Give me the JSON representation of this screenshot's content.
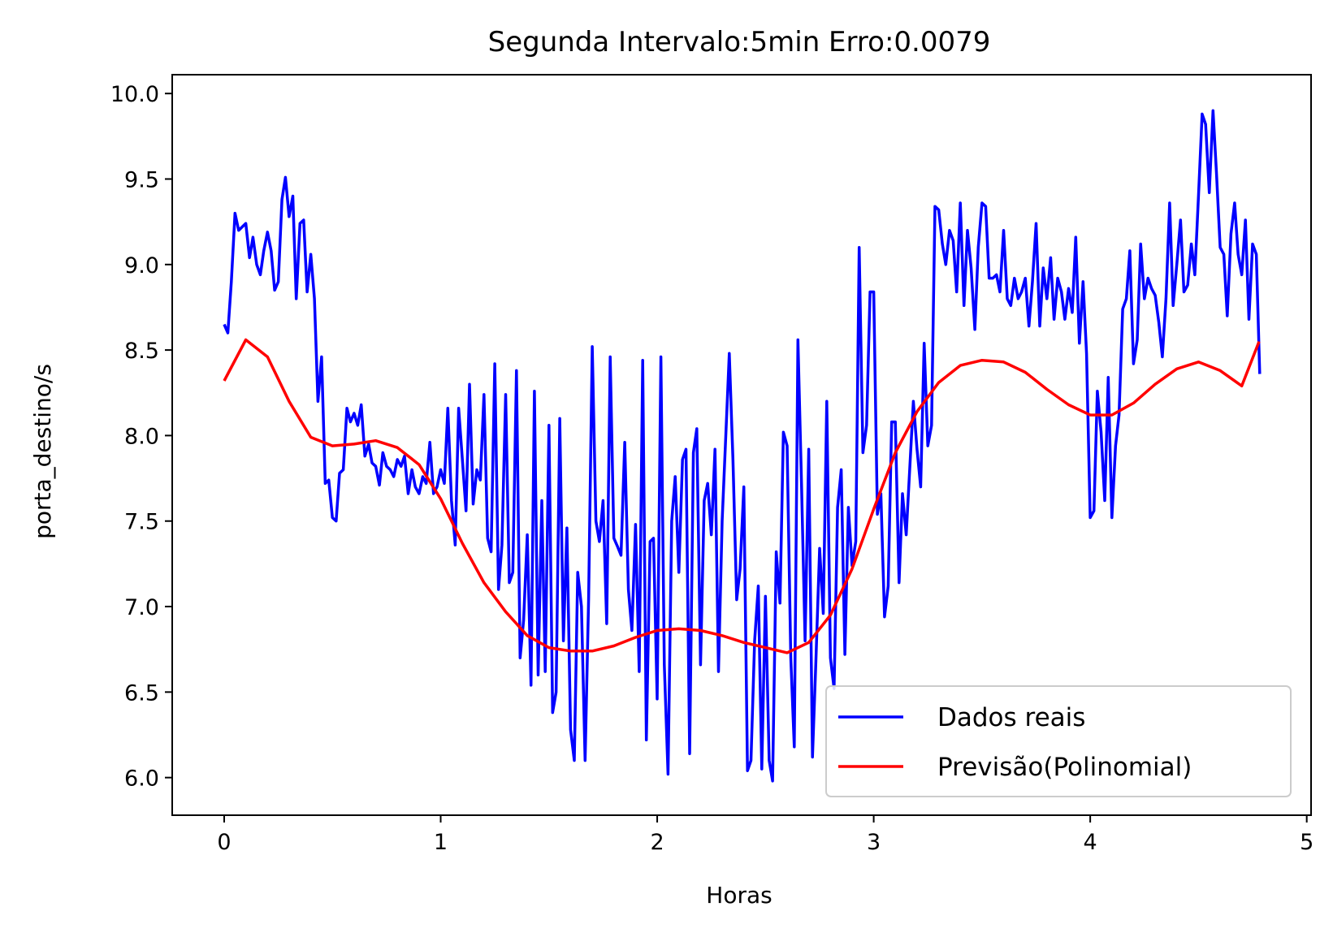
{
  "chart_data": {
    "type": "line",
    "title": "Segunda Intervalo:5min Erro:0.0079",
    "xlabel": "Horas",
    "ylabel": "porta_destino/s",
    "xlim": [
      -0.24,
      5.02
    ],
    "ylim": [
      5.78,
      10.11
    ],
    "xticks": [
      0,
      1,
      2,
      3,
      4,
      5
    ],
    "xtick_labels": [
      "0",
      "1",
      "2",
      "3",
      "4",
      "5"
    ],
    "yticks": [
      6.0,
      6.5,
      7.0,
      7.5,
      8.0,
      8.5,
      9.0,
      9.5,
      10.0
    ],
    "ytick_labels": [
      "6.0",
      "6.5",
      "7.0",
      "7.5",
      "8.0",
      "8.5",
      "9.0",
      "9.5",
      "10.0"
    ],
    "grid": false,
    "legend_position": "lower right",
    "series": [
      {
        "name": "Dados reais",
        "color": "#0000ff",
        "x": [
          0.0,
          0.017,
          0.033,
          0.05,
          0.067,
          0.083,
          0.1,
          0.117,
          0.133,
          0.15,
          0.167,
          0.183,
          0.2,
          0.217,
          0.233,
          0.25,
          0.267,
          0.283,
          0.3,
          0.317,
          0.333,
          0.35,
          0.367,
          0.383,
          0.4,
          0.417,
          0.433,
          0.45,
          0.467,
          0.483,
          0.5,
          0.517,
          0.533,
          0.55,
          0.567,
          0.583,
          0.6,
          0.617,
          0.633,
          0.65,
          0.667,
          0.683,
          0.7,
          0.717,
          0.733,
          0.75,
          0.767,
          0.783,
          0.8,
          0.817,
          0.833,
          0.85,
          0.867,
          0.883,
          0.9,
          0.917,
          0.933,
          0.95,
          0.967,
          0.983,
          1.0,
          1.017,
          1.033,
          1.05,
          1.067,
          1.083,
          1.1,
          1.117,
          1.133,
          1.15,
          1.167,
          1.183,
          1.2,
          1.217,
          1.233,
          1.25,
          1.267,
          1.283,
          1.3,
          1.317,
          1.333,
          1.35,
          1.367,
          1.383,
          1.4,
          1.417,
          1.433,
          1.45,
          1.467,
          1.483,
          1.5,
          1.517,
          1.533,
          1.55,
          1.567,
          1.583,
          1.6,
          1.617,
          1.633,
          1.65,
          1.667,
          1.683,
          1.7,
          1.717,
          1.733,
          1.75,
          1.767,
          1.783,
          1.8,
          1.817,
          1.833,
          1.85,
          1.867,
          1.883,
          1.9,
          1.917,
          1.933,
          1.95,
          1.967,
          1.983,
          2.0,
          2.017,
          2.033,
          2.05,
          2.067,
          2.083,
          2.1,
          2.117,
          2.133,
          2.15,
          2.167,
          2.183,
          2.2,
          2.217,
          2.233,
          2.25,
          2.267,
          2.283,
          2.3,
          2.317,
          2.333,
          2.35,
          2.367,
          2.383,
          2.4,
          2.417,
          2.433,
          2.45,
          2.467,
          2.483,
          2.5,
          2.517,
          2.533,
          2.55,
          2.567,
          2.583,
          2.6,
          2.617,
          2.633,
          2.65,
          2.667,
          2.683,
          2.7,
          2.717,
          2.733,
          2.75,
          2.767,
          2.783,
          2.8,
          2.817,
          2.833,
          2.85,
          2.867,
          2.883,
          2.9,
          2.917,
          2.933,
          2.95,
          2.967,
          2.983,
          3.0,
          3.017,
          3.033,
          3.05,
          3.067,
          3.083,
          3.1,
          3.117,
          3.133,
          3.15,
          3.167,
          3.183,
          3.2,
          3.217,
          3.233,
          3.25,
          3.267,
          3.283,
          3.3,
          3.317,
          3.333,
          3.35,
          3.367,
          3.383,
          3.4,
          3.417,
          3.433,
          3.45,
          3.467,
          3.483,
          3.5,
          3.517,
          3.533,
          3.55,
          3.567,
          3.583,
          3.6,
          3.617,
          3.633,
          3.65,
          3.667,
          3.683,
          3.7,
          3.717,
          3.733,
          3.75,
          3.767,
          3.783,
          3.8,
          3.817,
          3.833,
          3.85,
          3.867,
          3.883,
          3.9,
          3.917,
          3.933,
          3.95,
          3.967,
          3.983,
          4.0,
          4.017,
          4.033,
          4.05,
          4.067,
          4.083,
          4.1,
          4.117,
          4.133,
          4.15,
          4.167,
          4.183,
          4.2,
          4.217,
          4.233,
          4.25,
          4.267,
          4.283,
          4.3,
          4.317,
          4.333,
          4.35,
          4.367,
          4.383,
          4.4,
          4.417,
          4.433,
          4.45,
          4.467,
          4.483,
          4.5,
          4.517,
          4.533,
          4.55,
          4.567,
          4.583,
          4.6,
          4.617,
          4.633,
          4.65,
          4.667,
          4.683,
          4.7,
          4.717,
          4.733,
          4.75,
          4.767,
          4.783
        ],
        "values": [
          8.65,
          8.6,
          8.9,
          9.3,
          9.2,
          9.22,
          9.24,
          9.04,
          9.16,
          9.0,
          8.94,
          9.08,
          9.19,
          9.08,
          8.85,
          8.9,
          9.38,
          9.51,
          9.28,
          9.4,
          8.8,
          9.24,
          9.26,
          8.84,
          9.06,
          8.8,
          8.2,
          8.46,
          7.72,
          7.74,
          7.52,
          7.5,
          7.78,
          7.8,
          8.16,
          8.08,
          8.13,
          8.06,
          8.18,
          7.88,
          7.95,
          7.84,
          7.82,
          7.71,
          7.9,
          7.82,
          7.8,
          7.76,
          7.86,
          7.82,
          7.88,
          7.66,
          7.8,
          7.7,
          7.66,
          7.76,
          7.72,
          7.96,
          7.66,
          7.7,
          7.8,
          7.72,
          8.16,
          7.62,
          7.36,
          8.16,
          7.86,
          7.56,
          8.3,
          7.6,
          7.8,
          7.74,
          8.24,
          7.4,
          7.32,
          8.42,
          7.1,
          7.36,
          8.24,
          7.14,
          7.2,
          8.38,
          6.7,
          6.92,
          7.42,
          6.54,
          8.26,
          6.6,
          7.62,
          6.62,
          8.06,
          6.38,
          6.5,
          8.1,
          6.8,
          7.46,
          6.28,
          6.1,
          7.2,
          7.0,
          6.1,
          7.04,
          8.52,
          7.5,
          7.38,
          7.62,
          6.9,
          8.46,
          7.4,
          7.35,
          7.3,
          7.96,
          7.1,
          6.86,
          7.48,
          6.62,
          8.44,
          6.22,
          7.38,
          7.4,
          6.46,
          8.46,
          6.66,
          6.02,
          7.5,
          7.76,
          7.2,
          7.86,
          7.92,
          6.14,
          7.9,
          8.04,
          6.66,
          7.62,
          7.72,
          7.42,
          7.92,
          6.62,
          7.5,
          8.0,
          8.48,
          7.86,
          7.04,
          7.22,
          7.7,
          6.04,
          6.1,
          6.8,
          7.12,
          6.05,
          7.06,
          6.1,
          5.98,
          7.32,
          7.02,
          8.02,
          7.94,
          6.7,
          6.18,
          8.56,
          7.7,
          6.8,
          7.92,
          6.12,
          6.68,
          7.34,
          6.96,
          8.2,
          6.7,
          6.52,
          7.58,
          7.8,
          6.72,
          7.58,
          7.24,
          7.38,
          9.1,
          7.9,
          8.06,
          8.84,
          8.84,
          7.54,
          7.66,
          6.94,
          7.12,
          8.08,
          8.08,
          7.14,
          7.66,
          7.42,
          7.82,
          8.2,
          7.92,
          7.7,
          8.54,
          7.94,
          8.06,
          9.34,
          9.32,
          9.12,
          9.0,
          9.2,
          9.14,
          8.84,
          9.36,
          8.76,
          9.2,
          8.98,
          8.62,
          9.1,
          9.36,
          9.34,
          8.92,
          8.92,
          8.94,
          8.84,
          9.2,
          8.8,
          8.76,
          8.92,
          8.8,
          8.84,
          8.92,
          8.64,
          8.9,
          9.24,
          8.64,
          8.98,
          8.8,
          9.04,
          8.68,
          8.92,
          8.84,
          8.68,
          8.86,
          8.72,
          9.16,
          8.54,
          8.9,
          8.48,
          7.52,
          7.56,
          8.26,
          8.02,
          7.62,
          8.34,
          7.52,
          7.94,
          8.12,
          8.74,
          8.8,
          9.08,
          8.42,
          8.56,
          9.12,
          8.8,
          8.92,
          8.86,
          8.82,
          8.66,
          8.46,
          8.8,
          9.36,
          8.76,
          9.0,
          9.26,
          8.84,
          8.88,
          9.12,
          8.94,
          9.4,
          9.88,
          9.82,
          9.42,
          9.9,
          9.54,
          9.1,
          9.06,
          8.7,
          9.18,
          9.36,
          9.06,
          8.94,
          9.26,
          8.68,
          9.12,
          9.06,
          8.36
        ]
      },
      {
        "name": "Previsão(Polinomial)",
        "color": "#ff0000",
        "x": [
          0.0,
          0.1,
          0.2,
          0.3,
          0.4,
          0.5,
          0.6,
          0.7,
          0.8,
          0.9,
          1.0,
          1.1,
          1.2,
          1.3,
          1.4,
          1.5,
          1.6,
          1.7,
          1.8,
          1.9,
          2.0,
          2.1,
          2.2,
          2.3,
          2.4,
          2.5,
          2.6,
          2.7,
          2.8,
          2.9,
          3.0,
          3.1,
          3.2,
          3.3,
          3.4,
          3.5,
          3.6,
          3.7,
          3.8,
          3.9,
          4.0,
          4.1,
          4.2,
          4.3,
          4.4,
          4.5,
          4.6,
          4.7,
          4.78
        ],
        "values": [
          8.32,
          8.56,
          8.46,
          8.2,
          7.99,
          7.94,
          7.95,
          7.97,
          7.93,
          7.83,
          7.63,
          7.37,
          7.14,
          6.97,
          6.83,
          6.76,
          6.74,
          6.74,
          6.77,
          6.82,
          6.86,
          6.87,
          6.86,
          6.83,
          6.79,
          6.76,
          6.73,
          6.79,
          6.95,
          7.22,
          7.57,
          7.9,
          8.14,
          8.31,
          8.41,
          8.44,
          8.43,
          8.37,
          8.27,
          8.18,
          8.12,
          8.12,
          8.19,
          8.3,
          8.39,
          8.43,
          8.38,
          8.29,
          8.55
        ]
      }
    ]
  }
}
